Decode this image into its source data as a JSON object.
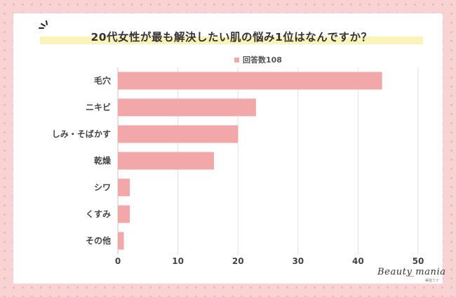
{
  "colors": {
    "bar": "#f2a7a8",
    "grid": "#e2e2e2",
    "text": "#444444",
    "background_frame": "#f9d3d3",
    "title_highlight": "#faf4b9"
  },
  "icons": [
    "sparkle-icon"
  ],
  "logo": {
    "text": "Beauty mania",
    "subtext": "美容ミナ"
  },
  "chart_data": {
    "type": "bar",
    "orientation": "horizontal",
    "title": "20代女性が最も解決したい肌の悩み1位はなんですか？",
    "categories": [
      "毛穴",
      "ニキビ",
      "しみ・そばかす",
      "乾燥",
      "シワ",
      "くすみ",
      "その他"
    ],
    "series": [
      {
        "name": "回答数108",
        "values": [
          44,
          23,
          20,
          16,
          2,
          2,
          1
        ]
      }
    ],
    "xlim": [
      0,
      50
    ],
    "xticks": [
      0,
      10,
      20,
      30,
      40,
      50
    ],
    "grid": true,
    "legend": "top-center"
  }
}
